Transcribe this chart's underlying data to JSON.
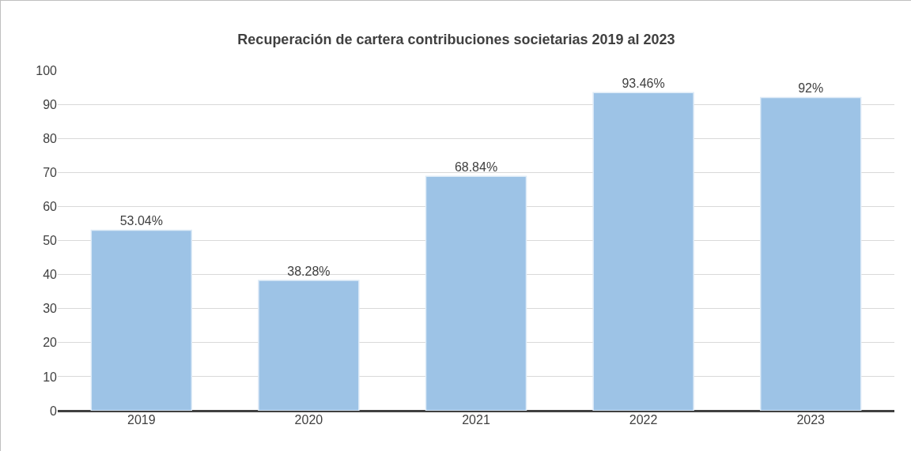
{
  "chart_data": {
    "type": "bar",
    "title": "Recuperación de cartera contribuciones societarias 2019 al 2023",
    "categories": [
      "2019",
      "2020",
      "2021",
      "2022",
      "2023"
    ],
    "values": [
      53.04,
      38.28,
      68.84,
      93.46,
      92
    ],
    "value_labels": [
      "53.04%",
      "38.28%",
      "68.84%",
      "93.46%",
      "92%"
    ],
    "color": "#9dc3e6",
    "ylim": [
      0,
      100
    ],
    "yticks": [
      0,
      10,
      20,
      30,
      40,
      50,
      60,
      70,
      80,
      90,
      100
    ],
    "grid": "y",
    "legend": false
  }
}
